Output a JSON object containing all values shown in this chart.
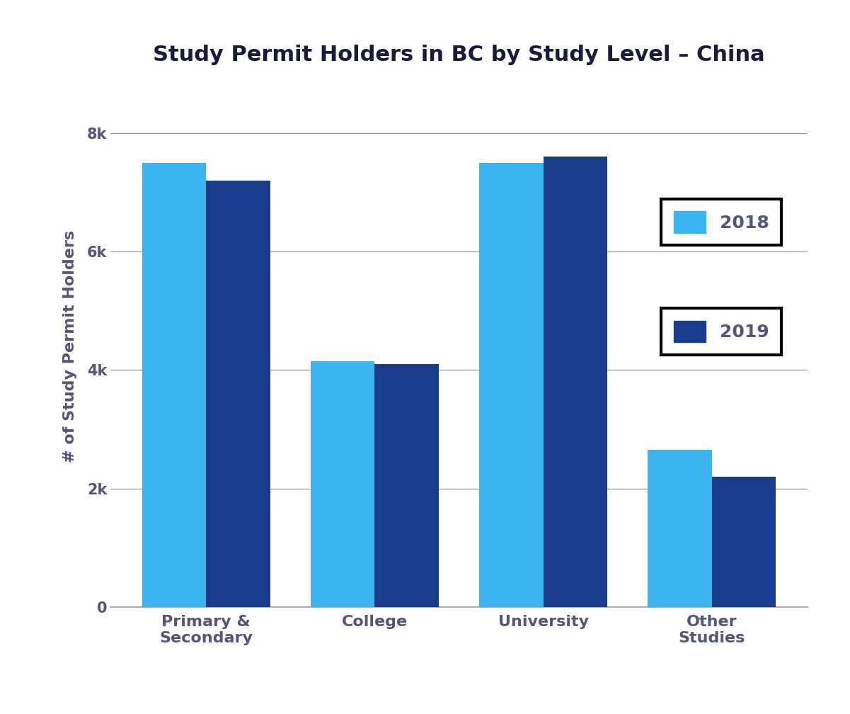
{
  "title": "Study Permit Holders in BC by Study Level – China",
  "ylabel": "# of Study Permit Holders",
  "categories": [
    "Primary &\nSecondary",
    "College",
    "University",
    "Other\nStudies"
  ],
  "values_2018": [
    7500,
    4150,
    7500,
    2650
  ],
  "values_2019": [
    7200,
    4100,
    7600,
    2200
  ],
  "color_2018": "#3cb4f0",
  "color_2019": "#1a3a8c",
  "ylim": [
    0,
    8800
  ],
  "yticks": [
    0,
    2000,
    4000,
    6000,
    8000
  ],
  "ytick_labels": [
    "0",
    "2k",
    "4k",
    "6k",
    "8k"
  ],
  "background_color": "#ffffff",
  "bar_width": 0.38,
  "legend_labels": [
    "2018",
    "2019"
  ],
  "grid_color": "#9999bb",
  "tick_color": "#555577",
  "title_fontsize": 22,
  "label_fontsize": 16,
  "tick_fontsize": 15,
  "legend_fontsize": 18
}
